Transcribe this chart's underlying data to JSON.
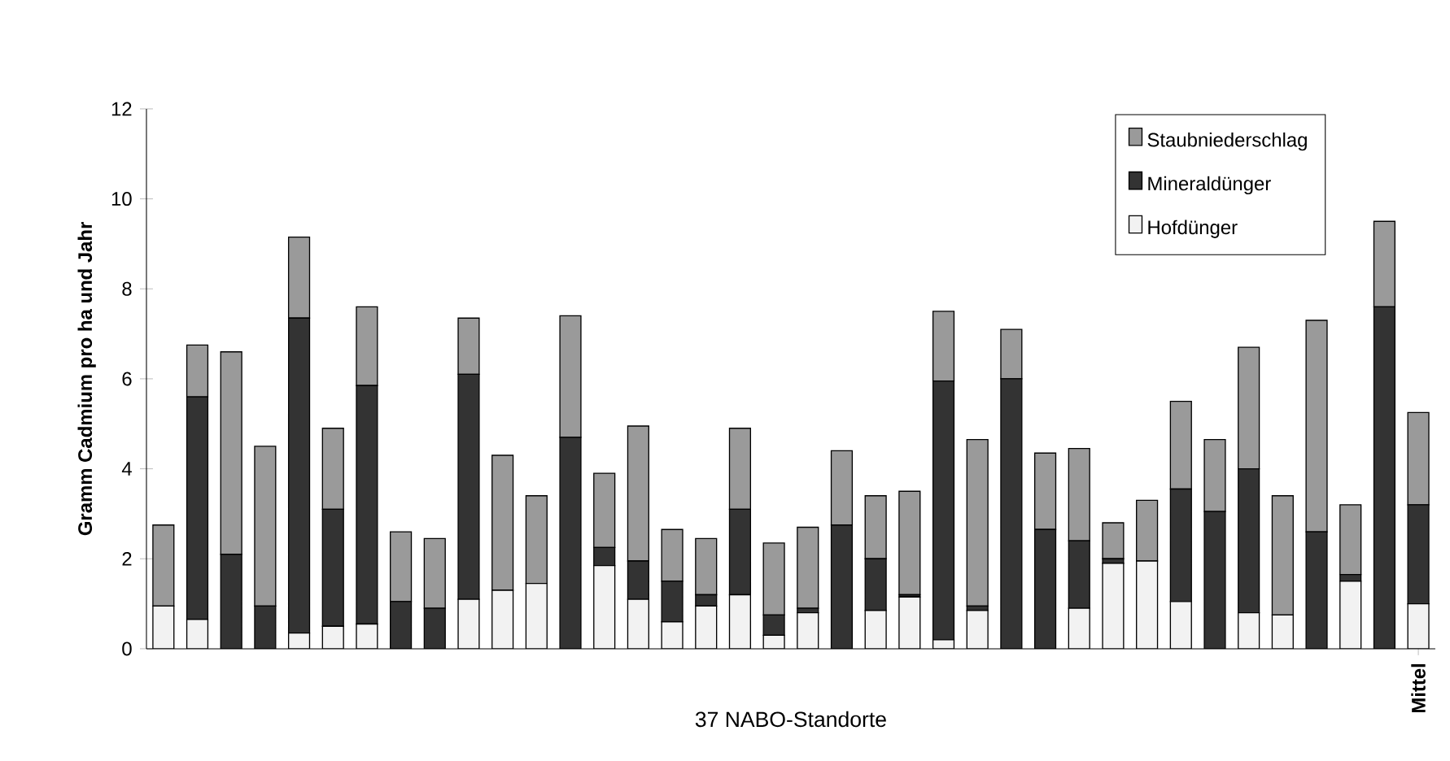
{
  "chart_data": {
    "type": "bar",
    "stacked": true,
    "xlabel": "37 NABO-Standorte",
    "ylabel": "Gramm Cadmium pro ha und Jahr",
    "categories": [
      null,
      null,
      null,
      null,
      null,
      null,
      null,
      null,
      null,
      null,
      null,
      null,
      null,
      null,
      null,
      null,
      null,
      null,
      null,
      null,
      null,
      null,
      null,
      null,
      null,
      null,
      null,
      null,
      null,
      null,
      null,
      null,
      null,
      null,
      null,
      null,
      null,
      "Mittel"
    ],
    "series": [
      {
        "name": "Hofdünger",
        "color": "#f2f2f2",
        "values": [
          0.95,
          0.65,
          0,
          0,
          0.35,
          0.5,
          0.55,
          0,
          0,
          1.1,
          1.3,
          1.45,
          0,
          1.85,
          1.1,
          0.6,
          0.95,
          1.2,
          0.3,
          0.8,
          0,
          0.85,
          1.15,
          0.2,
          0.85,
          0,
          0,
          0.9,
          1.9,
          1.95,
          1.05,
          0,
          0.8,
          0.75,
          0,
          1.5,
          0,
          1.0
        ]
      },
      {
        "name": "Mineraldünger",
        "color": "#333333",
        "values": [
          0,
          4.95,
          2.1,
          0.95,
          7.0,
          2.6,
          5.3,
          1.05,
          0.9,
          5.0,
          0,
          0,
          4.7,
          0.4,
          0.85,
          0.9,
          0.25,
          1.9,
          0.45,
          0.1,
          2.75,
          1.15,
          0.05,
          5.75,
          0.1,
          6.0,
          2.65,
          1.5,
          0.1,
          0,
          2.5,
          3.05,
          3.2,
          0,
          2.6,
          0.15,
          7.6,
          2.2
        ]
      },
      {
        "name": "Staubniederschlag",
        "color": "#9a9a9a",
        "values": [
          1.8,
          1.15,
          4.5,
          3.55,
          1.8,
          1.8,
          1.75,
          1.55,
          1.55,
          1.25,
          3.0,
          1.95,
          2.7,
          1.65,
          3.0,
          1.15,
          1.25,
          1.8,
          1.6,
          1.8,
          1.65,
          1.4,
          2.3,
          1.55,
          3.7,
          1.1,
          1.7,
          2.05,
          0.8,
          1.35,
          1.95,
          1.6,
          2.7,
          2.65,
          4.7,
          1.55,
          1.9,
          2.05
        ]
      }
    ],
    "ylim": [
      0,
      12
    ],
    "yticks": [
      0,
      2,
      4,
      6,
      8,
      10,
      12
    ],
    "legend": "top right"
  }
}
